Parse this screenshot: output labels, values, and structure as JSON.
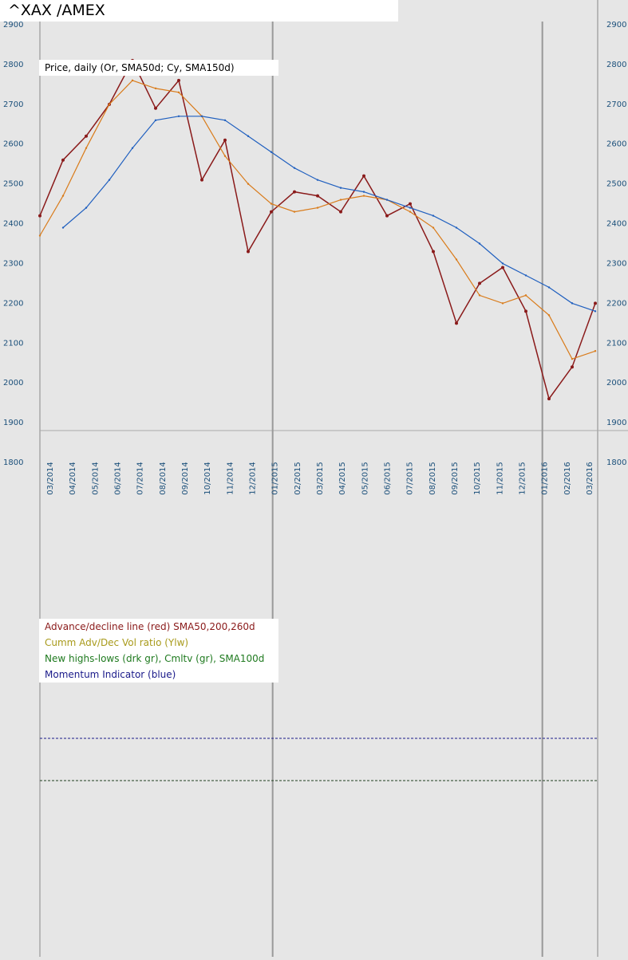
{
  "header": {
    "title": "^XAX /AMEX"
  },
  "chart_data": [
    {
      "type": "line",
      "panel": "price",
      "legend": "Price, daily (Or, SMA50d; Cy, SMA150d)",
      "y_ticks": [
        "2900",
        "2800",
        "2700",
        "2600",
        "2500",
        "2400",
        "2300",
        "2200",
        "2100",
        "2000",
        "1900",
        "1800"
      ],
      "ylim": [
        1800,
        2900
      ],
      "x_ticks": [
        "03/2014",
        "04/2014",
        "05/2014",
        "06/2014",
        "07/2014",
        "08/2014",
        "09/2014",
        "10/2014",
        "11/2014",
        "12/2014",
        "01/2015",
        "02/2015",
        "03/2015",
        "04/2015",
        "05/2015",
        "06/2015",
        "07/2015",
        "08/2015",
        "09/2015",
        "10/2015",
        "11/2015",
        "12/2015",
        "01/2016",
        "02/2016",
        "03/2016"
      ],
      "series": [
        {
          "name": "Price",
          "color": "#8a1a1a",
          "x": [
            "2014-03",
            "2014-04",
            "2014-05",
            "2014-06",
            "2014-07",
            "2014-08",
            "2014-09",
            "2014-10",
            "2014-11",
            "2014-12",
            "2015-01",
            "2015-02",
            "2015-03",
            "2015-04",
            "2015-05",
            "2015-06",
            "2015-07",
            "2015-08",
            "2015-09",
            "2015-10",
            "2015-11",
            "2015-12",
            "2016-01",
            "2016-02",
            "2016-03"
          ],
          "values": [
            2420,
            2560,
            2620,
            2700,
            2810,
            2690,
            2760,
            2510,
            2610,
            2330,
            2430,
            2480,
            2470,
            2430,
            2520,
            2420,
            2450,
            2330,
            2150,
            2250,
            2290,
            2180,
            1960,
            2040,
            2200
          ]
        },
        {
          "name": "SMA50d",
          "color": "#d97b1a",
          "values": [
            2370,
            2470,
            2590,
            2700,
            2760,
            2740,
            2730,
            2670,
            2570,
            2500,
            2450,
            2430,
            2440,
            2460,
            2470,
            2460,
            2430,
            2390,
            2310,
            2220,
            2200,
            2220,
            2170,
            2060,
            2080
          ]
        },
        {
          "name": "SMA150d",
          "color": "#1f5fbf",
          "values": [
            null,
            2390,
            2440,
            2510,
            2590,
            2660,
            2670,
            2670,
            2660,
            2620,
            2580,
            2540,
            2510,
            2490,
            2480,
            2460,
            2440,
            2420,
            2390,
            2350,
            2300,
            2270,
            2240,
            2200,
            2180
          ]
        }
      ]
    },
    {
      "type": "line",
      "panel": "breadth",
      "legend": [
        "Advance/decline line (red) SMA50,200,260d",
        "Cumm Adv/Dec Vol ratio (Ylw)",
        "New highs-lows (drk gr), Cmltv (gr), SMA100d",
        "Momentum Indicator (blue)"
      ],
      "legend_colors": [
        "#8a1a1a",
        "#a89a1a",
        "#1f7a1f",
        "#1a1a8a"
      ]
    }
  ]
}
